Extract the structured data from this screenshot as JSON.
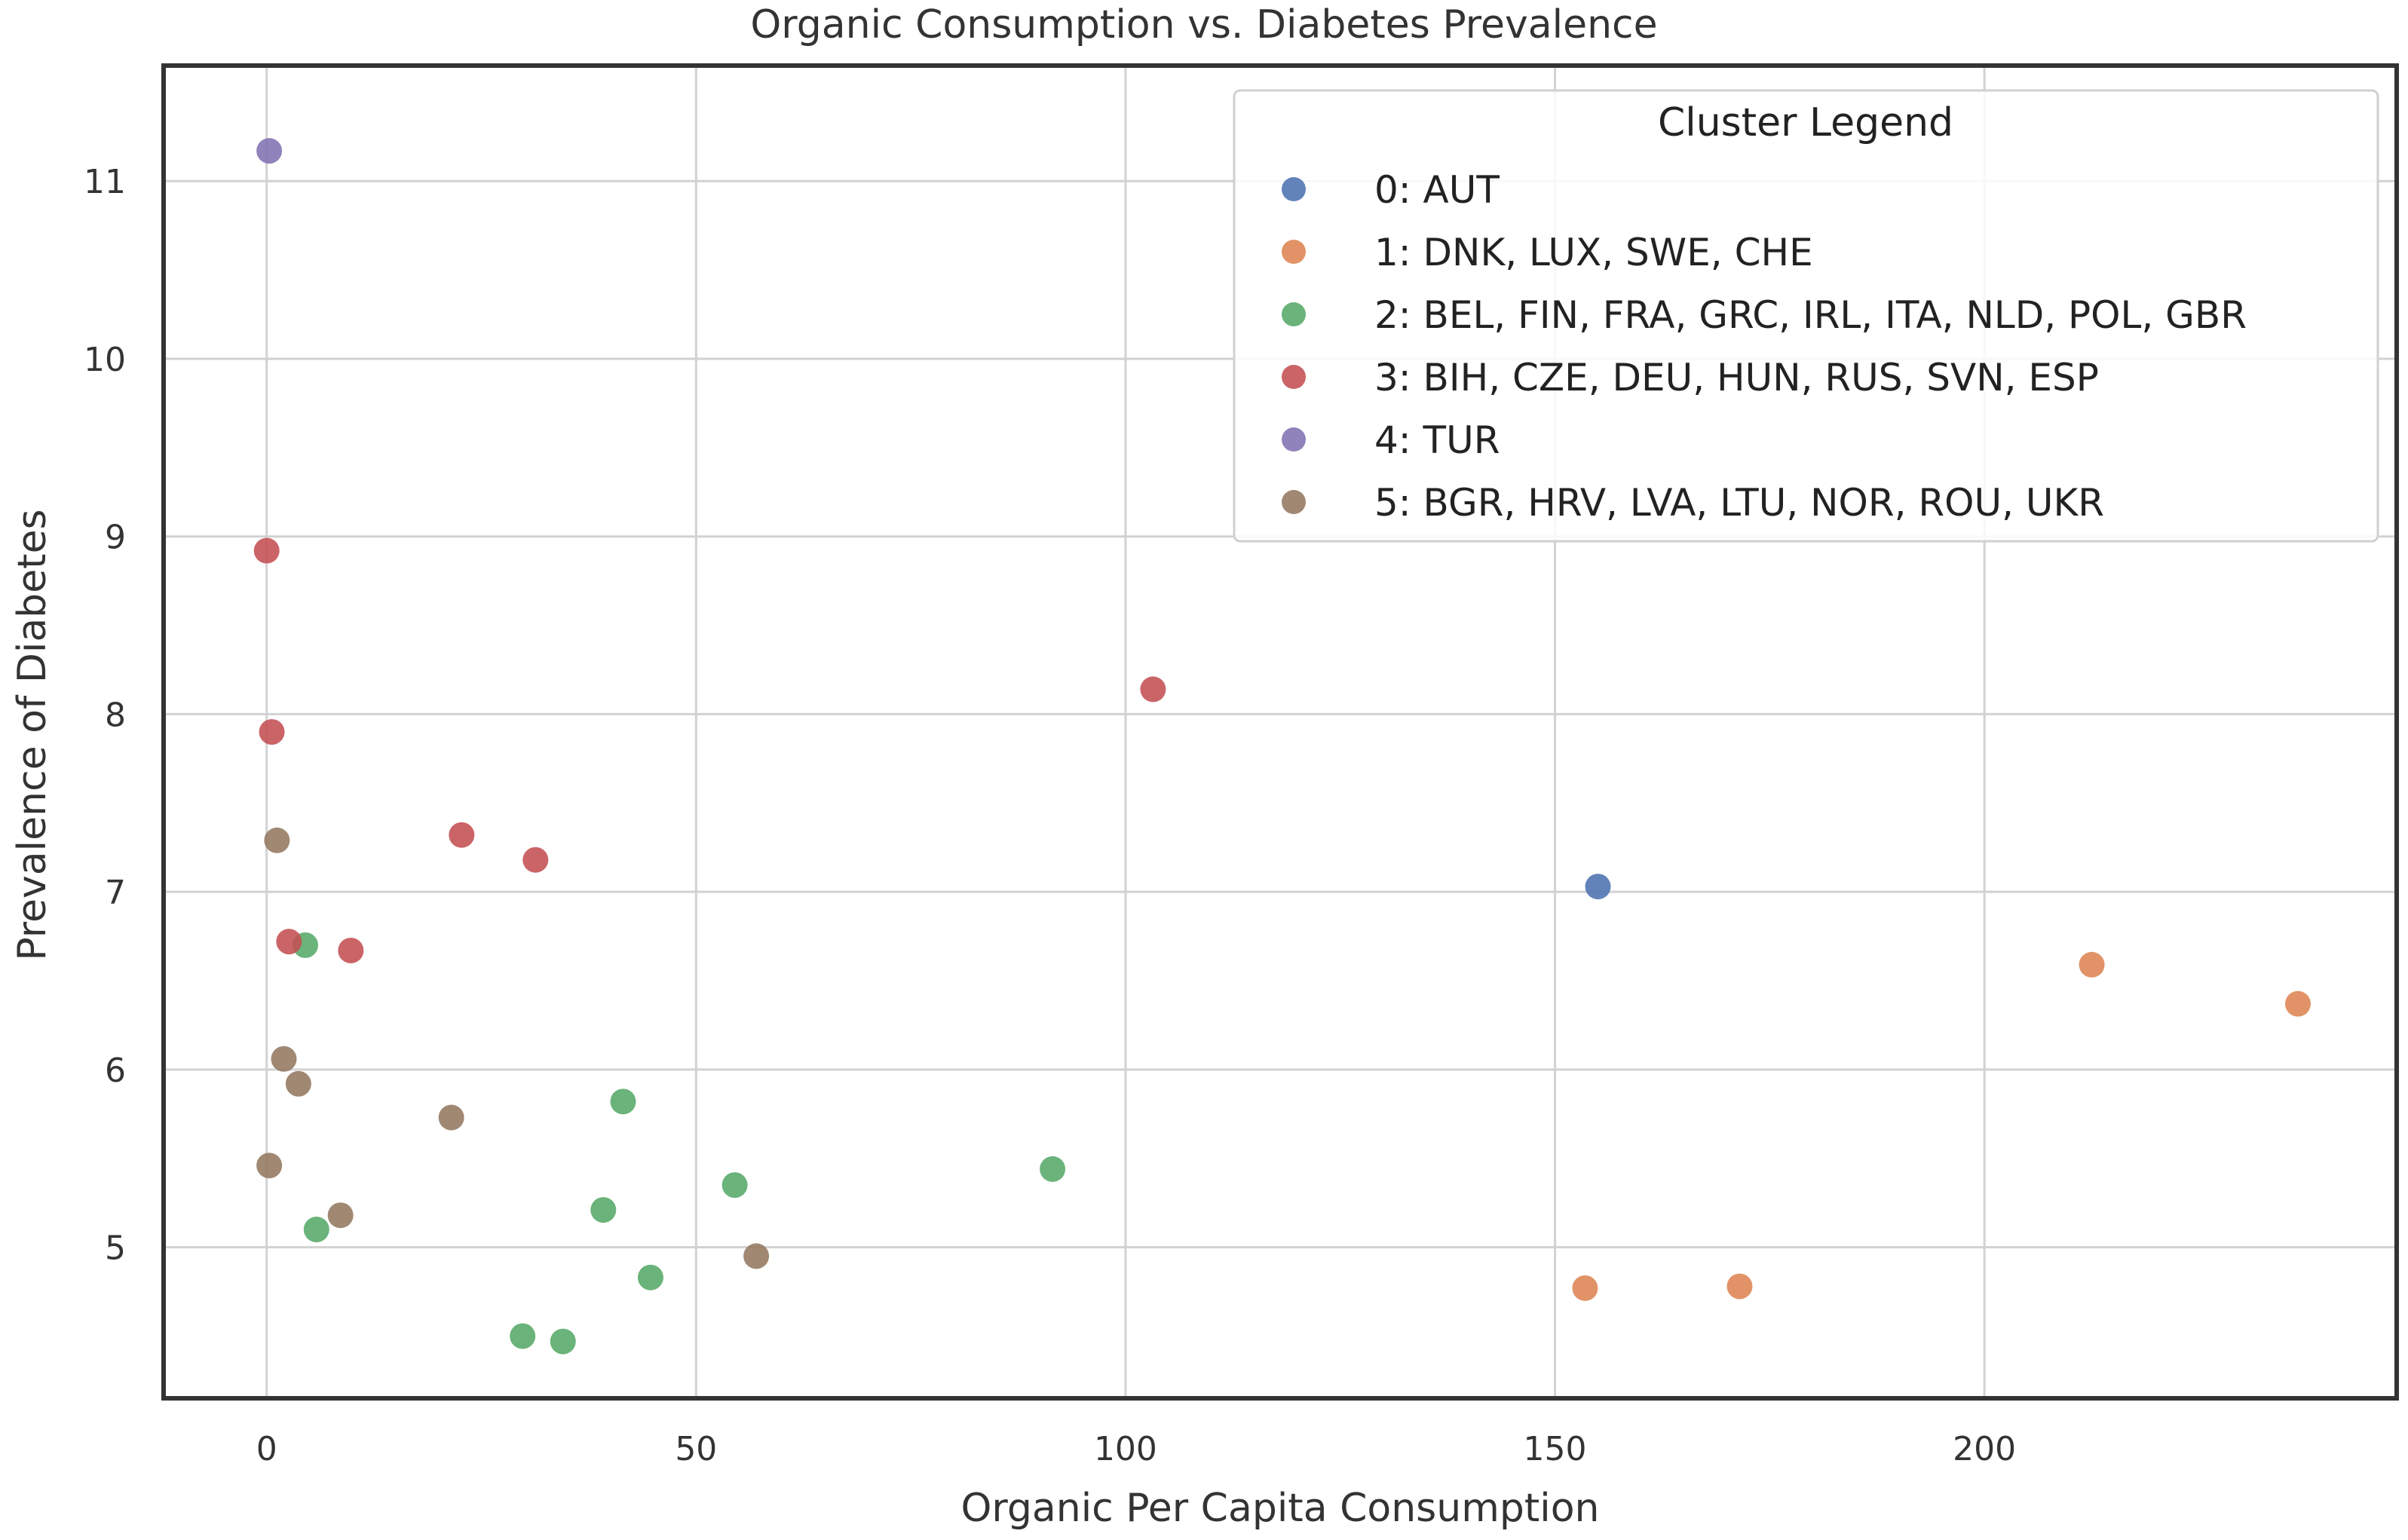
{
  "chart_data": {
    "type": "scatter",
    "title": "Organic Consumption vs. Diabetes Prevalence",
    "xlabel": "Organic Per Capita Consumption",
    "ylabel": "Prevalence of Diabetes",
    "xlim": [
      -12,
      248
    ],
    "ylim": [
      4.15,
      11.65
    ],
    "xticks": [
      0,
      50,
      100,
      150,
      200
    ],
    "yticks": [
      5,
      6,
      7,
      8,
      9,
      10,
      11
    ],
    "grid": true,
    "legend": {
      "title": "Cluster Legend",
      "placement": "top-right"
    },
    "series": [
      {
        "name": "0: AUT",
        "color": "#4c72b0",
        "points": [
          [
            155,
            7.03
          ]
        ]
      },
      {
        "name": "1: DNK, LUX, SWE, CHE",
        "color": "#dd8452",
        "points": [
          [
            153.5,
            4.77
          ],
          [
            171.5,
            4.78
          ],
          [
            212.5,
            6.59
          ],
          [
            236.5,
            6.37
          ]
        ]
      },
      {
        "name": "2: BEL, FIN, FRA, GRC, IRL, ITA, NLD, POL, GBR",
        "color": "#55a868",
        "points": [
          [
            4.5,
            6.7
          ],
          [
            5.8,
            5.1
          ],
          [
            29.8,
            4.5
          ],
          [
            34.5,
            4.47
          ],
          [
            39.2,
            5.21
          ],
          [
            41.5,
            5.82
          ],
          [
            44.7,
            4.83
          ],
          [
            54.5,
            5.35
          ],
          [
            91.5,
            5.44
          ]
        ]
      },
      {
        "name": "3: BIH, CZE, DEU, HUN, RUS, SVN, ESP",
        "color": "#c44e52",
        "points": [
          [
            0,
            8.92
          ],
          [
            0.6,
            7.9
          ],
          [
            2.6,
            6.72
          ],
          [
            9.8,
            6.67
          ],
          [
            22.7,
            7.32
          ],
          [
            31.3,
            7.18
          ],
          [
            103.2,
            8.14
          ]
        ]
      },
      {
        "name": "4: TUR",
        "color": "#8172b3",
        "points": [
          [
            0.3,
            11.17
          ]
        ]
      },
      {
        "name": "5: BGR, HRV, LVA, LTU, NOR, ROU, UKR",
        "color": "#937860",
        "points": [
          [
            0.3,
            5.46
          ],
          [
            1.2,
            7.29
          ],
          [
            2.0,
            6.06
          ],
          [
            3.7,
            5.92
          ],
          [
            8.6,
            5.18
          ],
          [
            21.5,
            5.73
          ],
          [
            57.0,
            4.95
          ]
        ]
      }
    ]
  }
}
